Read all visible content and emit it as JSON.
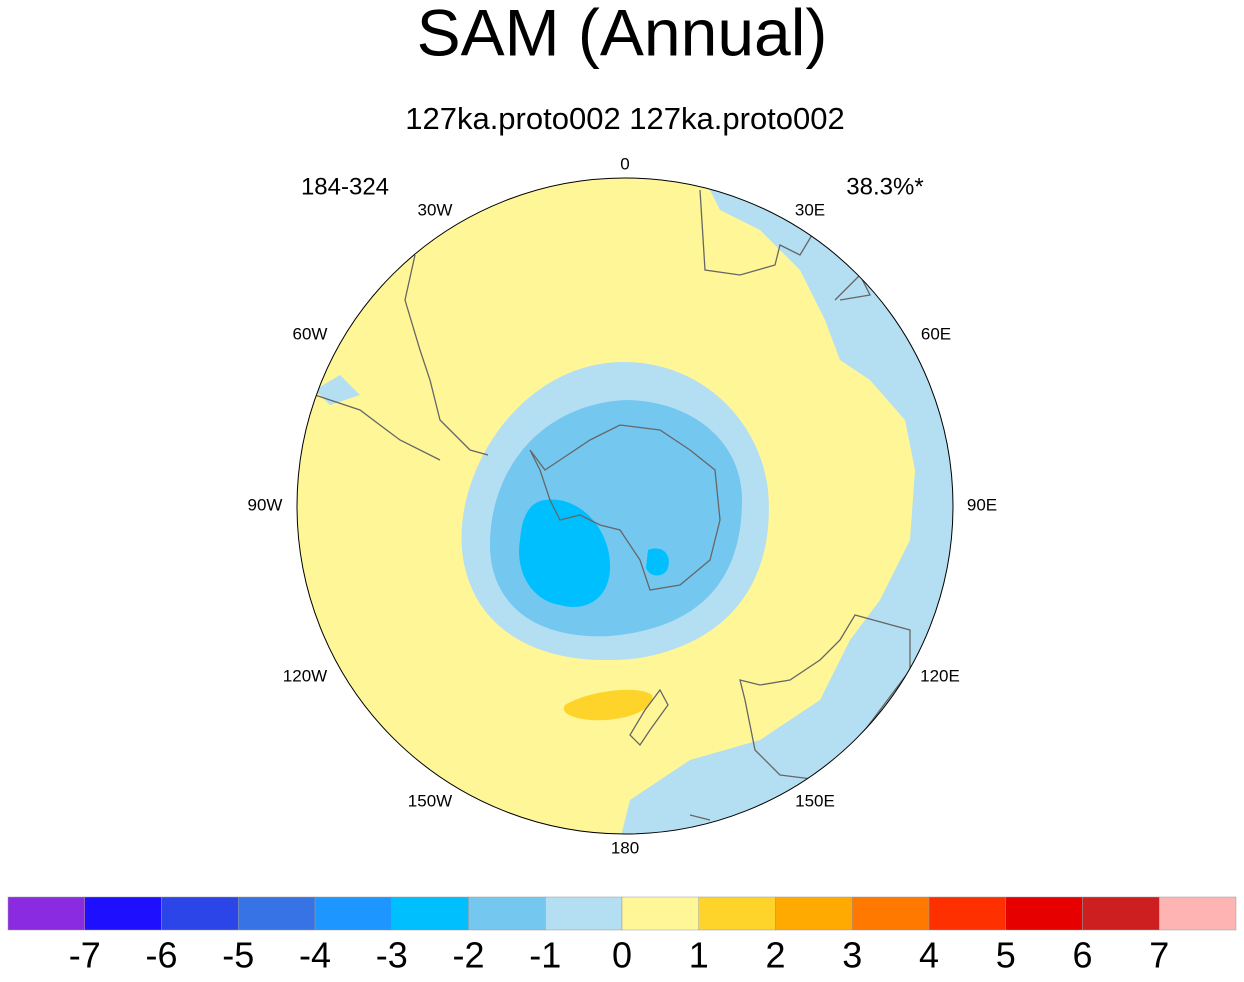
{
  "title": "SAM (Annual)",
  "subtitle": "127ka.proto002  127ka.proto002",
  "left_label": "184-324",
  "right_label": "38.3%*",
  "map": {
    "lon_labels": [
      "0",
      "30E",
      "60E",
      "90E",
      "120E",
      "150E",
      "180",
      "150W",
      "120W",
      "90W",
      "60W",
      "30W"
    ]
  },
  "colorbar": {
    "levels": [
      -7,
      -6,
      -5,
      -4,
      -3,
      -2,
      -1,
      0,
      1,
      2,
      3,
      4,
      5,
      6,
      7
    ],
    "colors": [
      "#8a2be2",
      "#1e0fff",
      "#2b45e8",
      "#3873e6",
      "#1e96ff",
      "#00bfff",
      "#74c8f0",
      "#b4def2",
      "#fff797",
      "#ffd42a",
      "#ffaa00",
      "#ff7800",
      "#ff3000",
      "#e60000",
      "#cd1f1f",
      "#ffb4b4"
    ]
  }
}
